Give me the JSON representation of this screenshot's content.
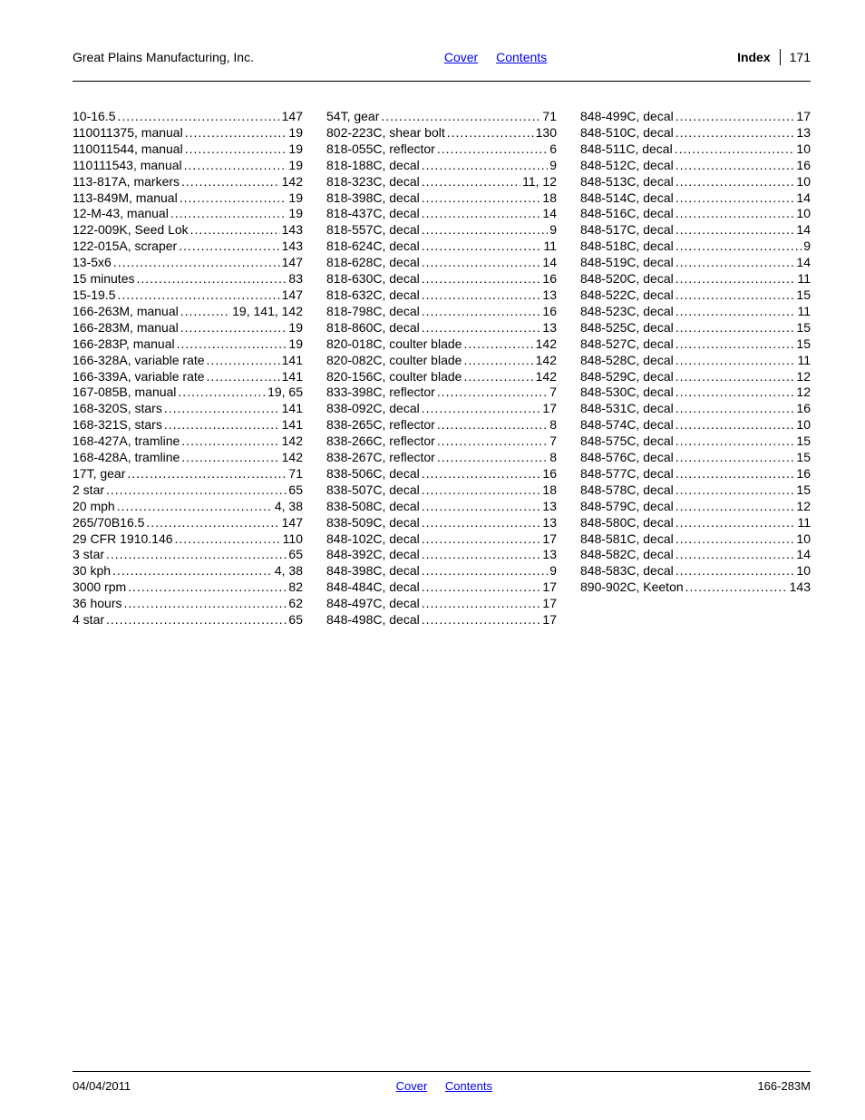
{
  "header": {
    "company": "Great Plains Manufacturing, Inc.",
    "link_cover": "Cover",
    "link_contents": "Contents",
    "section_label": "Index",
    "page_number": "171"
  },
  "footer": {
    "date": "04/04/2011",
    "link_cover": "Cover",
    "link_contents": "Contents",
    "doc_number": "166-283M"
  },
  "columns": [
    [
      {
        "term": "10-16.5",
        "page": "147"
      },
      {
        "term": "110011375, manual",
        "page": "19"
      },
      {
        "term": "110011544, manual",
        "page": "19"
      },
      {
        "term": "110111543, manual",
        "page": "19"
      },
      {
        "term": "113-817A, markers",
        "page": "142"
      },
      {
        "term": "113-849M, manual",
        "page": "19"
      },
      {
        "term": "12-M-43, manual",
        "page": "19"
      },
      {
        "term": "122-009K, Seed Lok",
        "page": "143"
      },
      {
        "term": "122-015A, scraper",
        "page": "143"
      },
      {
        "term": "13-5x6",
        "page": "147"
      },
      {
        "term": "15 minutes",
        "page": "83"
      },
      {
        "term": "15-19.5",
        "page": "147"
      },
      {
        "term": "166-263M, manual",
        "page": "19, 141, 142"
      },
      {
        "term": "166-283M, manual",
        "page": "19"
      },
      {
        "term": "166-283P, manual",
        "page": "19"
      },
      {
        "term": "166-328A, variable rate",
        "page": "141"
      },
      {
        "term": "166-339A, variable rate",
        "page": "141"
      },
      {
        "term": "167-085B, manual",
        "page": "19, 65"
      },
      {
        "term": "168-320S, stars",
        "page": "141"
      },
      {
        "term": "168-321S, stars",
        "page": "141"
      },
      {
        "term": "168-427A, tramline",
        "page": "142"
      },
      {
        "term": "168-428A, tramline",
        "page": "142"
      },
      {
        "term": "17T, gear",
        "page": "71"
      },
      {
        "term": "2 star",
        "page": "65"
      },
      {
        "term": "20 mph",
        "page": "4, 38"
      },
      {
        "term": "265/70B16.5",
        "page": "147"
      },
      {
        "term": "29 CFR 1910.146",
        "page": "110"
      },
      {
        "term": "3 star",
        "page": "65"
      },
      {
        "term": "30 kph",
        "page": "4, 38"
      },
      {
        "term": "3000 rpm",
        "page": "82"
      },
      {
        "term": "36 hours",
        "page": "62"
      },
      {
        "term": "4 star",
        "page": "65"
      }
    ],
    [
      {
        "term": "54T, gear",
        "page": "71"
      },
      {
        "term": "802-223C, shear bolt",
        "page": "130"
      },
      {
        "term": "818-055C, reflector",
        "page": "6"
      },
      {
        "term": "818-188C, decal",
        "page": "9"
      },
      {
        "term": "818-323C, decal",
        "page": "11, 12"
      },
      {
        "term": "818-398C, decal",
        "page": "18"
      },
      {
        "term": "818-437C, decal",
        "page": "14"
      },
      {
        "term": "818-557C, decal",
        "page": "9"
      },
      {
        "term": "818-624C, decal",
        "page": "11"
      },
      {
        "term": "818-628C, decal",
        "page": "14"
      },
      {
        "term": "818-630C, decal",
        "page": "16"
      },
      {
        "term": "818-632C, decal",
        "page": "13"
      },
      {
        "term": "818-798C, decal",
        "page": "16"
      },
      {
        "term": "818-860C, decal",
        "page": "13"
      },
      {
        "term": "820-018C, coulter blade",
        "page": "142"
      },
      {
        "term": "820-082C, coulter blade",
        "page": "142"
      },
      {
        "term": "820-156C, coulter blade",
        "page": "142"
      },
      {
        "term": "833-398C, reflector",
        "page": "7"
      },
      {
        "term": "838-092C, decal",
        "page": "17"
      },
      {
        "term": "838-265C, reflector",
        "page": "8"
      },
      {
        "term": "838-266C, reflector",
        "page": "7"
      },
      {
        "term": "838-267C, reflector",
        "page": "8"
      },
      {
        "term": "838-506C, decal",
        "page": "16"
      },
      {
        "term": "838-507C, decal",
        "page": "18"
      },
      {
        "term": "838-508C, decal",
        "page": "13"
      },
      {
        "term": "838-509C, decal",
        "page": "13"
      },
      {
        "term": "848-102C, decal",
        "page": "17"
      },
      {
        "term": "848-392C, decal",
        "page": "13"
      },
      {
        "term": "848-398C, decal",
        "page": "9"
      },
      {
        "term": "848-484C, decal",
        "page": "17"
      },
      {
        "term": "848-497C, decal",
        "page": "17"
      },
      {
        "term": "848-498C, decal",
        "page": "17"
      }
    ],
    [
      {
        "term": "848-499C, decal",
        "page": "17"
      },
      {
        "term": "848-510C, decal",
        "page": "13"
      },
      {
        "term": "848-511C, decal",
        "page": "10"
      },
      {
        "term": "848-512C, decal",
        "page": "16"
      },
      {
        "term": "848-513C, decal",
        "page": "10"
      },
      {
        "term": "848-514C, decal",
        "page": "14"
      },
      {
        "term": "848-516C, decal",
        "page": "10"
      },
      {
        "term": "848-517C, decal",
        "page": "14"
      },
      {
        "term": "848-518C, decal",
        "page": "9"
      },
      {
        "term": "848-519C, decal",
        "page": "14"
      },
      {
        "term": "848-520C, decal",
        "page": "11"
      },
      {
        "term": "848-522C, decal",
        "page": "15"
      },
      {
        "term": "848-523C, decal",
        "page": "11"
      },
      {
        "term": "848-525C, decal",
        "page": "15"
      },
      {
        "term": "848-527C, decal",
        "page": "15"
      },
      {
        "term": "848-528C, decal",
        "page": "11"
      },
      {
        "term": "848-529C, decal",
        "page": "12"
      },
      {
        "term": "848-530C, decal",
        "page": "12"
      },
      {
        "term": "848-531C, decal",
        "page": "16"
      },
      {
        "term": "848-574C, decal",
        "page": "10"
      },
      {
        "term": "848-575C, decal",
        "page": "15"
      },
      {
        "term": "848-576C, decal",
        "page": "15"
      },
      {
        "term": "848-577C, decal",
        "page": "16"
      },
      {
        "term": "848-578C, decal",
        "page": "15"
      },
      {
        "term": "848-579C, decal",
        "page": "12"
      },
      {
        "term": "848-580C, decal",
        "page": "11"
      },
      {
        "term": "848-581C, decal",
        "page": "10"
      },
      {
        "term": "848-582C, decal",
        "page": "14"
      },
      {
        "term": "848-583C, decal",
        "page": "10"
      },
      {
        "term": "890-902C, Keeton",
        "page": "143"
      }
    ]
  ]
}
